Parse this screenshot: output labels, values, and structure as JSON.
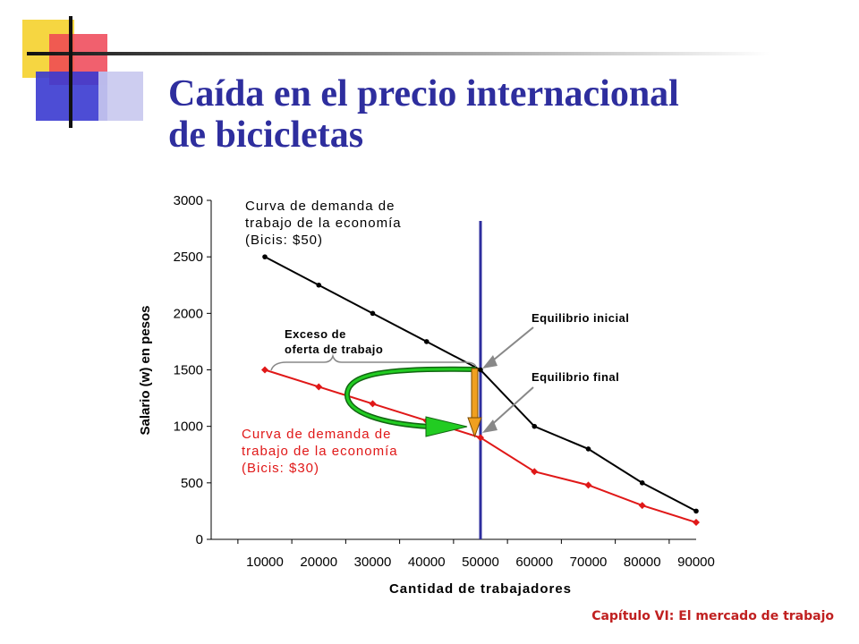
{
  "slide": {
    "title_line1": "Caída en el precio internacional",
    "title_line2": "de bicicletas",
    "footer": "Capítulo VI: El mercado de trabajo"
  },
  "colors": {
    "title": "#2e2e9e",
    "deco_yellow": "#f5d22c",
    "deco_red": "#ee4455",
    "deco_blue": "#3a3ad0",
    "series_initial": "#000000",
    "series_final": "#e01818",
    "vertical_line": "#2e2e9e",
    "green_arrow": "#22cc22",
    "orange_arrow": "#f0a020",
    "footer": "#c02020"
  },
  "chart_data": {
    "type": "line",
    "xlabel": "Cantidad de trabajadores",
    "ylabel": "Salario (w) en pesos",
    "categories": [
      "10000",
      "20000",
      "30000",
      "40000",
      "50000",
      "60000",
      "70000",
      "80000",
      "90000"
    ],
    "x": [
      10000,
      20000,
      30000,
      40000,
      50000,
      60000,
      70000,
      80000,
      90000
    ],
    "xlim": [
      0,
      90000
    ],
    "ylim": [
      0,
      3000
    ],
    "yticks": [
      0,
      500,
      1000,
      1500,
      2000,
      2500,
      3000
    ],
    "grid": false,
    "series": [
      {
        "label_lines": [
          "Curva de demanda de",
          "trabajo de la economía",
          "(Bicis: $50)"
        ],
        "color": "#000000",
        "marker": "circle",
        "values": [
          2500,
          2250,
          2000,
          1750,
          1500,
          1000,
          800,
          500,
          250
        ]
      },
      {
        "label_lines": [
          "Curva de demanda de",
          "trabajo de la economía",
          "(Bicis: $30)"
        ],
        "color": "#e01818",
        "marker": "diamond",
        "values": [
          1500,
          1350,
          1200,
          1050,
          900,
          600,
          480,
          300,
          150
        ]
      }
    ],
    "equilibrium_x": 50000,
    "annotations": {
      "initial": "Equilibrio inicial",
      "final": "Equilibrio final",
      "excess_lines": [
        "Exceso de",
        "oferta de trabajo"
      ]
    }
  }
}
